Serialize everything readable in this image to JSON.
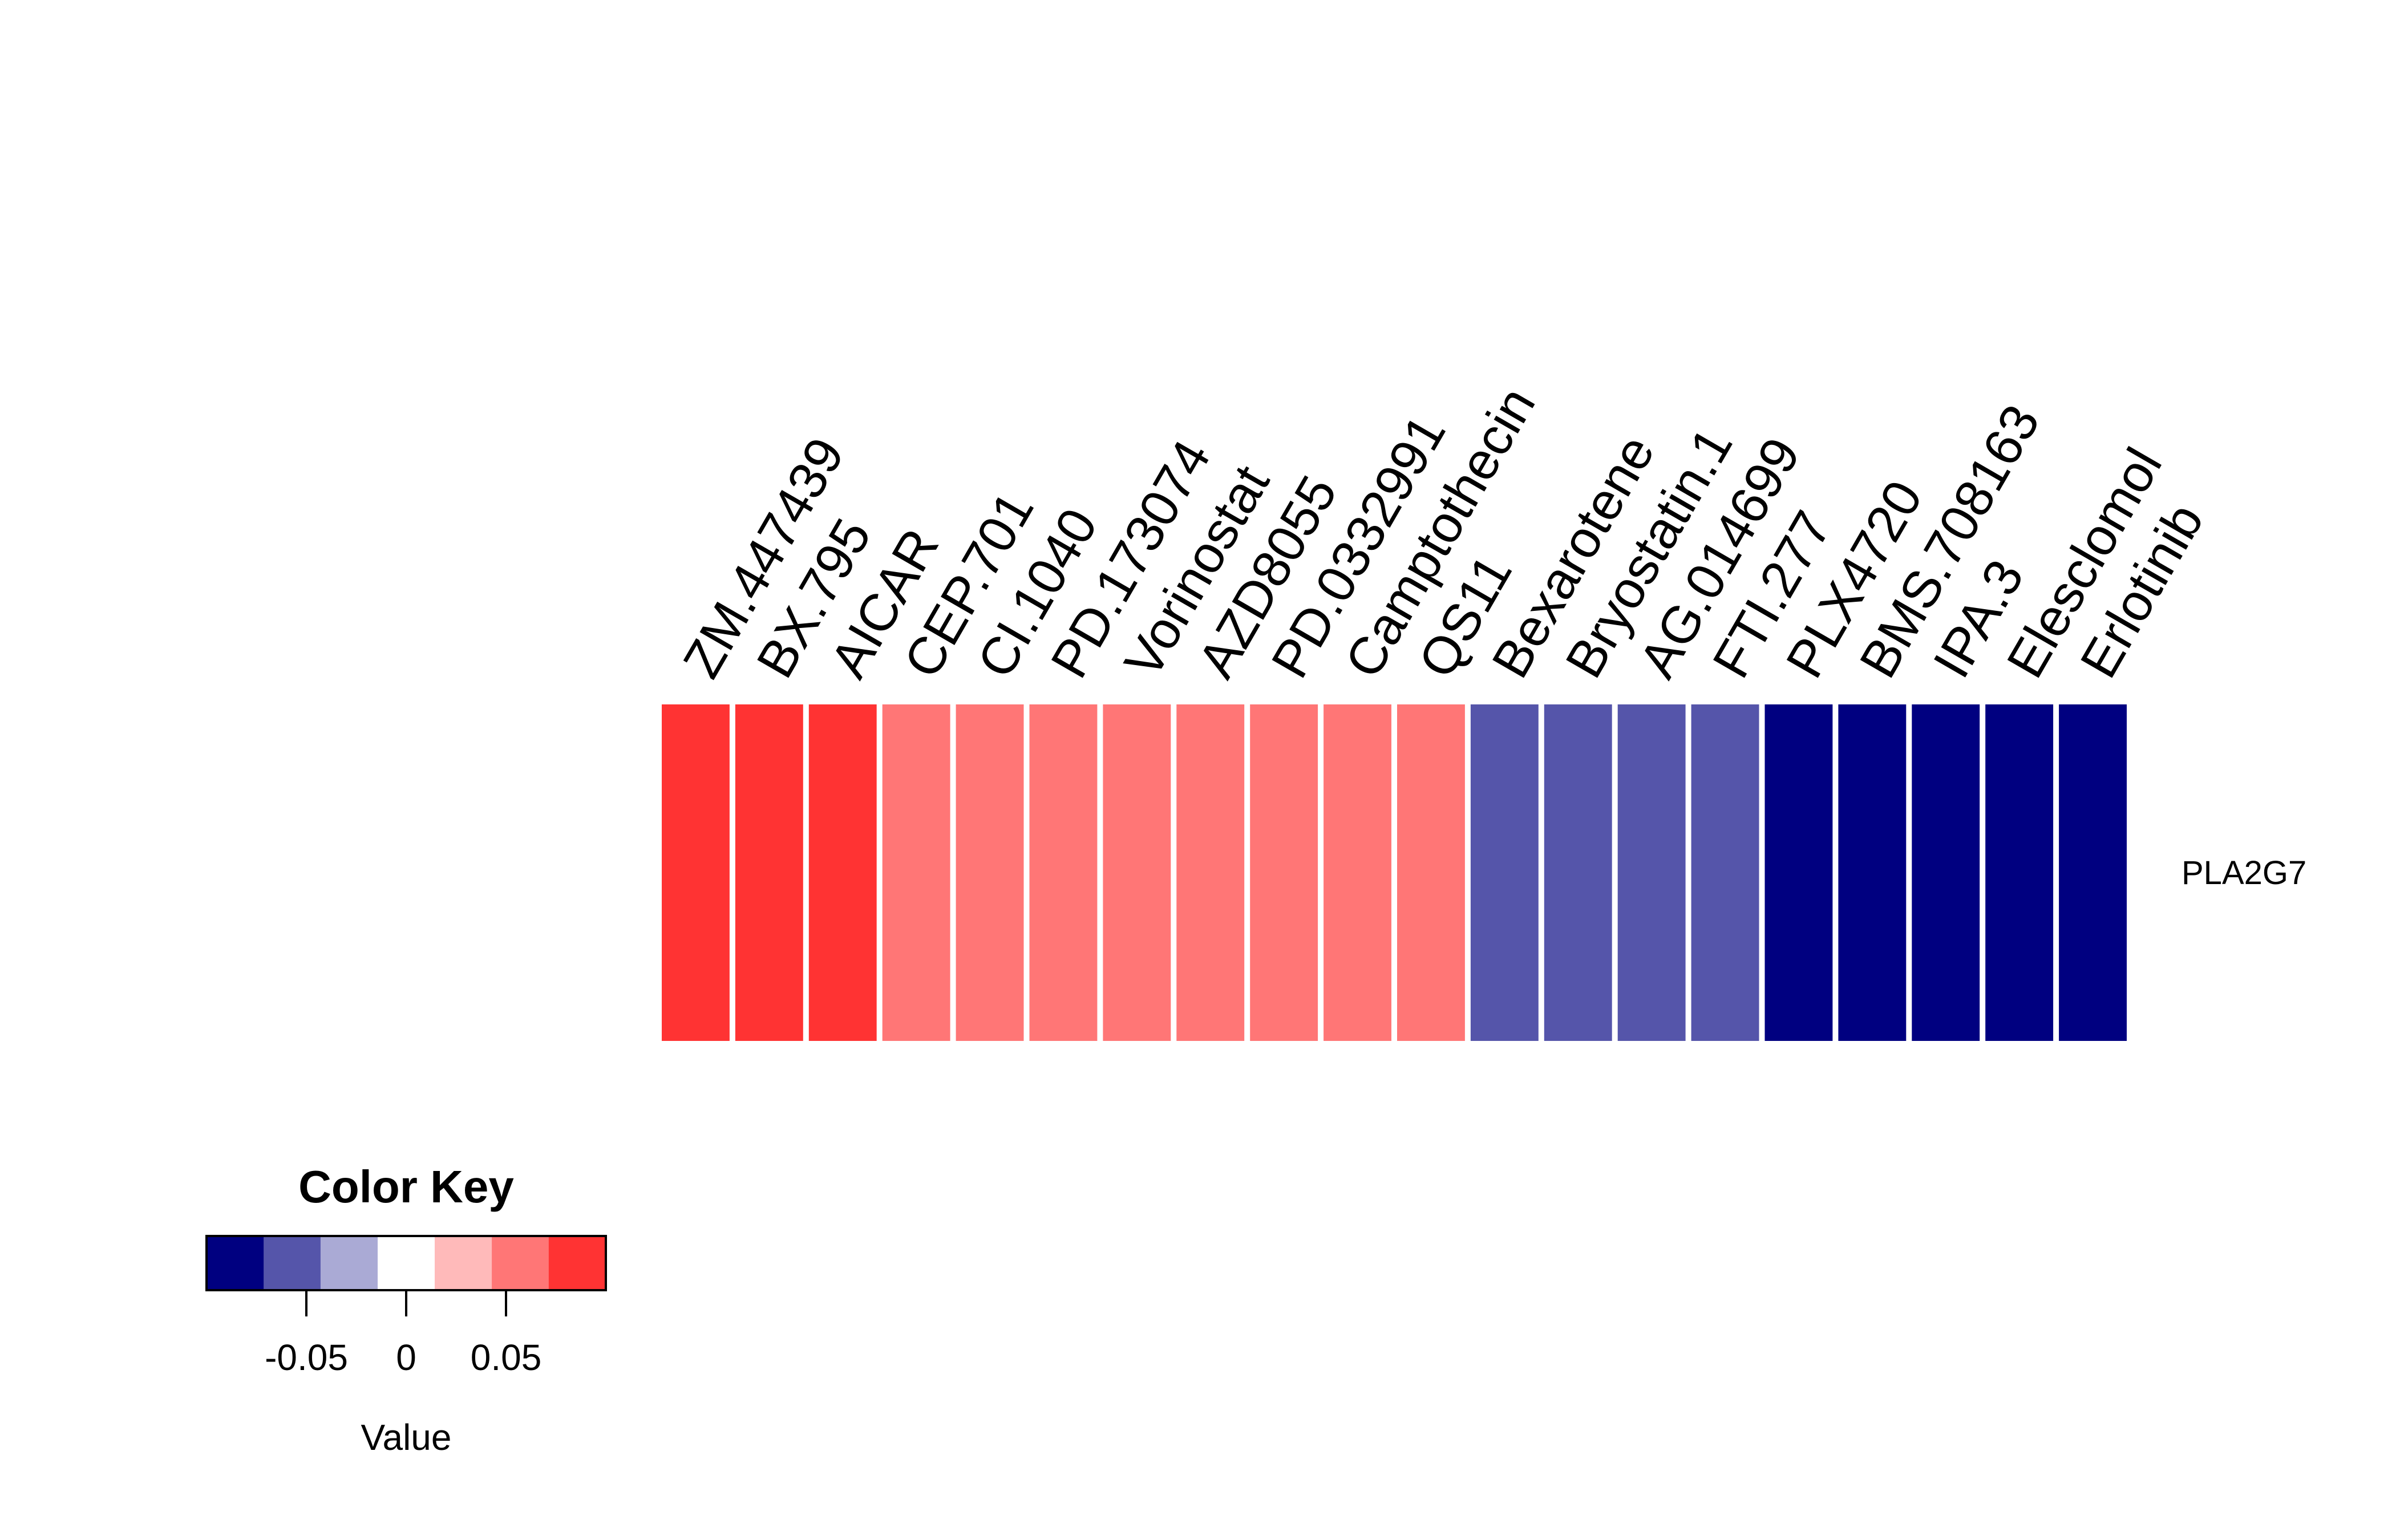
{
  "chart_data": {
    "type": "heatmap",
    "rows": [
      "PLA2G7"
    ],
    "columns": [
      "ZM.447439",
      "BX.795",
      "AICAR",
      "CEP.701",
      "CI.1040",
      "PD.173074",
      "Vorinostat",
      "AZD8055",
      "PD.0332991",
      "Camptothecin",
      "QS11",
      "Bexarotene",
      "Bryostatin.1",
      "AG.014699",
      "FTI.277",
      "PLX4720",
      "BMS.708163",
      "IPA.3",
      "Elesclomol",
      "Erlotinib"
    ],
    "values": [
      [
        0.075,
        0.075,
        0.075,
        0.05,
        0.05,
        0.05,
        0.05,
        0.05,
        0.05,
        0.05,
        0.05,
        -0.05,
        -0.05,
        -0.05,
        -0.05,
        -0.075,
        -0.075,
        -0.075,
        -0.075,
        -0.075
      ]
    ],
    "color_key": {
      "title": "Color Key",
      "xlabel": "Value",
      "range": [
        -0.1,
        0.1
      ],
      "bins": [
        {
          "min": -0.1,
          "max": -0.0714,
          "color": "#000080"
        },
        {
          "min": -0.0714,
          "max": -0.0429,
          "color": "#5555AA"
        },
        {
          "min": -0.0429,
          "max": -0.0143,
          "color": "#AAAAD5"
        },
        {
          "min": -0.0143,
          "max": 0.0143,
          "color": "#FFFFFF"
        },
        {
          "min": 0.0143,
          "max": 0.0429,
          "color": "#FFBABA"
        },
        {
          "min": 0.0429,
          "max": 0.0714,
          "color": "#FF7676"
        },
        {
          "min": 0.0714,
          "max": 0.1,
          "color": "#FF3333"
        }
      ],
      "ticks": [
        -0.05,
        0,
        0.05
      ],
      "tick_labels": [
        "-0.05",
        "0",
        "0.05"
      ]
    }
  }
}
